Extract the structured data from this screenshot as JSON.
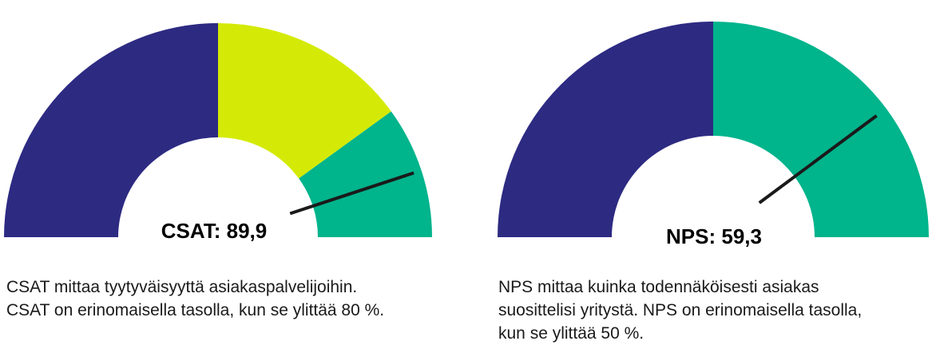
{
  "colors": {
    "navy": "#2d2a82",
    "lime": "#d4ea06",
    "green": "#00b48c",
    "needle": "#1a1a1a",
    "text": "#1a1a1a"
  },
  "chart_data": [
    {
      "type": "gauge",
      "range": [
        0,
        100
      ],
      "bands": [
        {
          "from": 0,
          "to": 50,
          "color": "navy"
        },
        {
          "from": 50,
          "to": 80,
          "color": "lime"
        },
        {
          "from": 80,
          "to": 100,
          "color": "green"
        }
      ],
      "value": 89.9,
      "label": "CSAT: 89,9",
      "description": [
        "CSAT mittaa tyytyväisyyttä asiakaspalvelijoihin.",
        "CSAT on erinomaisella tasolla, kun se ylittää 80 %."
      ]
    },
    {
      "type": "gauge",
      "range": [
        -100,
        100
      ],
      "bands": [
        {
          "from": -100,
          "to": 0,
          "color": "navy"
        },
        {
          "from": 0,
          "to": 100,
          "color": "green"
        }
      ],
      "value": 59.3,
      "label": "NPS: 59,3",
      "description": [
        "NPS mittaa kuinka todennäköisesti asiakas",
        "suosittelisi yritystä. NPS on erinomaisella tasolla,",
        "kun se ylittää 50 %."
      ]
    }
  ]
}
